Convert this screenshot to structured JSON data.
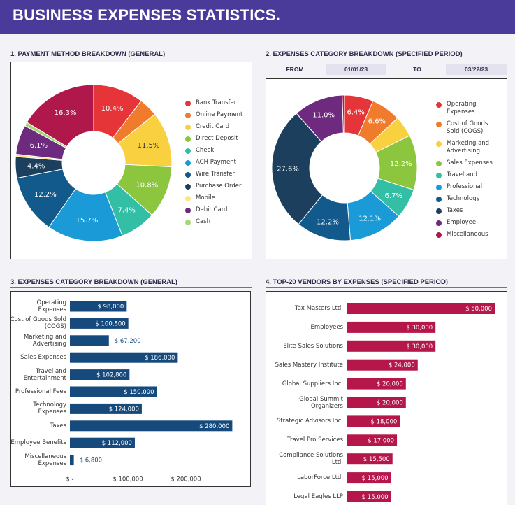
{
  "title": "BUSINESS EXPENSES STATISTICS.",
  "chart_data": [
    {
      "type": "donut",
      "title": "1. PAYMENT METHOD BREAKDOWN (GENERAL)",
      "categories": [
        "Bank Transfer",
        "Online Payment",
        "Credit Card",
        "Direct Deposit",
        "Check",
        "ACH Payment",
        "Wire Transfer",
        "Purchase Order",
        "Mobile",
        "Debit Card",
        "Cash",
        null
      ],
      "values": [
        10.4,
        3.9,
        11.5,
        10.8,
        7.4,
        15.7,
        12.2,
        4.4,
        0.5,
        6.1,
        0.8,
        16.3
      ],
      "value_labels": [
        "10.4%",
        null,
        "11.5%",
        "10.8%",
        "7.4%",
        "15.7%",
        "12.2%",
        "4.4%",
        null,
        "6.1%",
        null,
        "16.3%"
      ],
      "colors": [
        "#e63538",
        "#f07b2c",
        "#f9d03f",
        "#8cc63f",
        "#33bfa5",
        "#1a9bd7",
        "#125a8c",
        "#1b3f5c",
        "#fde38a",
        "#6e2a7e",
        "#a6d86f",
        "#b0174a"
      ]
    },
    {
      "type": "donut",
      "title": "2. EXPENSES CATEGORY BREAKDOWN (SPECIFIED PERIOD)",
      "date_filter": {
        "from_label": "FROM",
        "from": "01/01/23",
        "to_label": "TO",
        "to": "03/22/23"
      },
      "categories": [
        "Operating Expenses",
        "Cost of Goods Sold (COGS)",
        "Marketing and Advertising",
        "Sales Expenses",
        "Travel and",
        "Professional",
        "Technology",
        "Taxes",
        "Employee",
        "Miscellaneous"
      ],
      "values": [
        6.4,
        6.6,
        4.7,
        12.2,
        6.7,
        12.1,
        12.2,
        27.6,
        11.0,
        0.5
      ],
      "value_labels": [
        "6.4%",
        "6.6%",
        null,
        "12.2%",
        "6.7%",
        "12.1%",
        "12.2%",
        "27.6%",
        "11.0%",
        null
      ],
      "colors": [
        "#e63538",
        "#f07b2c",
        "#f9d03f",
        "#8cc63f",
        "#33bfa5",
        "#1a9bd7",
        "#125a8c",
        "#1b3f5c",
        "#6e2a7e",
        "#b0174a"
      ]
    },
    {
      "type": "hbar",
      "title": "3. EXPENSES CATEGORY BREAKDOWN (GENERAL)",
      "categories": [
        "Operating Expenses",
        "Cost of Goods Sold (COGS)",
        "Marketing and Advertising",
        "Sales Expenses",
        "Travel and Entertainment",
        "Professional Fees",
        "Technology Expenses",
        "Taxes",
        "Employee Benefits",
        "Miscellaneous Expenses"
      ],
      "values": [
        98000,
        100800,
        67200,
        186000,
        102800,
        150000,
        124000,
        280000,
        112000,
        6800
      ],
      "value_labels": [
        "$ 98,000",
        "$ 100,800",
        "$ 67,200",
        "$ 186,000",
        "$ 102,800",
        "$ 150,000",
        "$ 124,000",
        "$ 280,000",
        "$ 112,000",
        "$ 6,800"
      ],
      "color": "#174a7c",
      "xlim": [
        0,
        300000
      ],
      "xticks": [
        {
          "value": 0,
          "label": "$ -"
        },
        {
          "value": 100000,
          "label": "$ 100,000"
        },
        {
          "value": 200000,
          "label": "$ 200,000"
        }
      ]
    },
    {
      "type": "hbar",
      "title": "4. TOP-20 VENDORS BY EXPENSES (SPECIFIED PERIOD)",
      "categories": [
        "Tax Masters Ltd.",
        "Employees",
        "Elite Sales Solutions",
        "Sales Mastery Institute",
        "Global Suppliers Inc.",
        "Global Summit Organizers",
        "Strategic Advisors Inc.",
        "Travel Pro Services",
        "Compliance Solutions Ltd.",
        "LaborForce Ltd.",
        "Legal Eagles LLP"
      ],
      "values": [
        50000,
        30000,
        30000,
        24000,
        20000,
        20000,
        18000,
        17000,
        15500,
        15000,
        15000
      ],
      "value_labels": [
        "$ 50,000",
        "$ 30,000",
        "$ 30,000",
        "$ 24,000",
        "$ 20,000",
        "$ 20,000",
        "$ 18,000",
        "$ 17,000",
        "$ 15,500",
        "$ 15,000",
        "$ 15,000"
      ],
      "color": "#b5174a",
      "xlim": [
        0,
        50000
      ]
    }
  ]
}
